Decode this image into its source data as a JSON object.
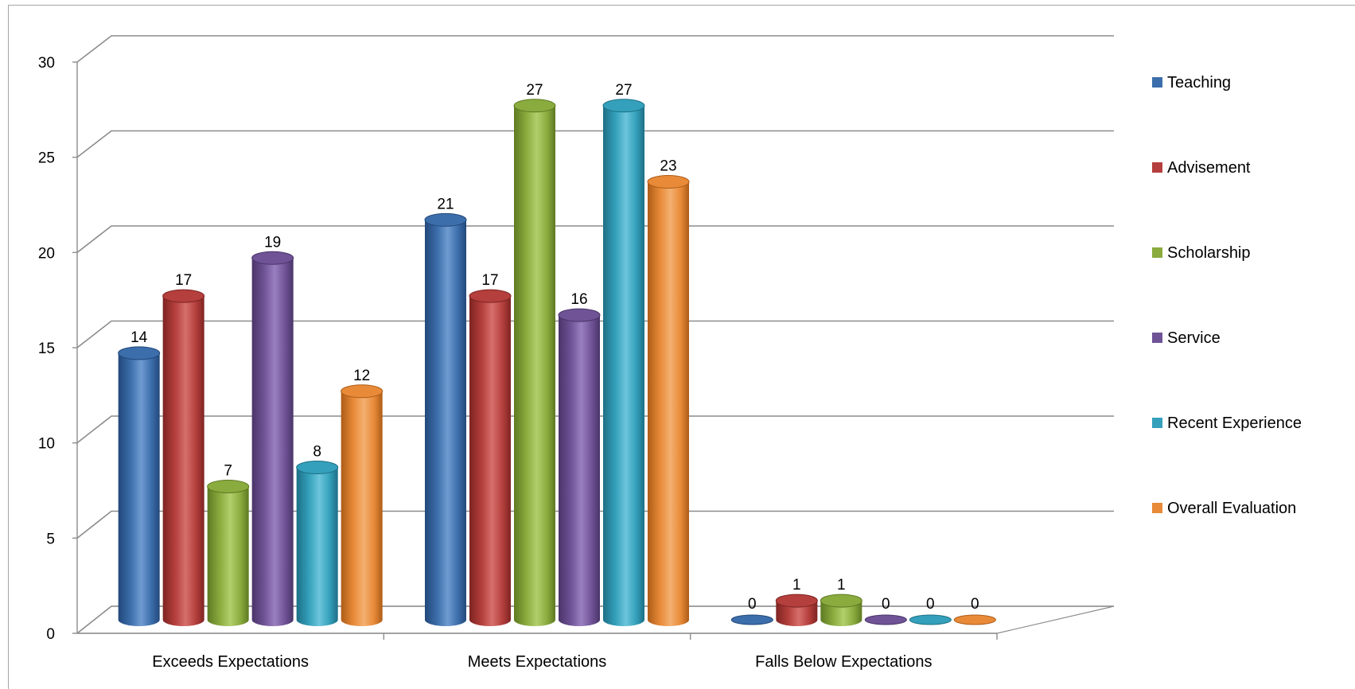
{
  "chart_data": {
    "type": "bar",
    "style": "3d-cylinder",
    "categories": [
      "Exceeds Expectations",
      "Meets Expectations",
      "Falls Below Expectations"
    ],
    "series": [
      {
        "name": "Teaching",
        "color": "#3c6eab",
        "dark": "#22487a",
        "light": "#6f9bd0",
        "values": [
          14,
          21,
          0
        ]
      },
      {
        "name": "Advisement",
        "color": "#b43f3c",
        "dark": "#7e2422",
        "light": "#d66f6b",
        "values": [
          17,
          17,
          1
        ]
      },
      {
        "name": "Scholarship",
        "color": "#8aab3e",
        "dark": "#5e7a22",
        "light": "#b2cf6c",
        "values": [
          7,
          27,
          1
        ]
      },
      {
        "name": "Service",
        "color": "#6f5396",
        "dark": "#4a3469",
        "light": "#9a7fc0",
        "values": [
          19,
          16,
          0
        ]
      },
      {
        "name": "Recent Experience",
        "color": "#34a0bb",
        "dark": "#1d6f85",
        "light": "#6cc5db",
        "values": [
          8,
          27,
          0
        ]
      },
      {
        "name": "Overall Evaluation",
        "color": "#e88a38",
        "dark": "#ad5c17",
        "light": "#f4b071",
        "values": [
          12,
          23,
          0
        ]
      }
    ],
    "yticks": [
      0,
      5,
      10,
      15,
      20,
      25,
      30
    ],
    "ylim": [
      0,
      30
    ],
    "grid": true,
    "legend": "right",
    "title": "",
    "xlabel": "",
    "ylabel": ""
  }
}
